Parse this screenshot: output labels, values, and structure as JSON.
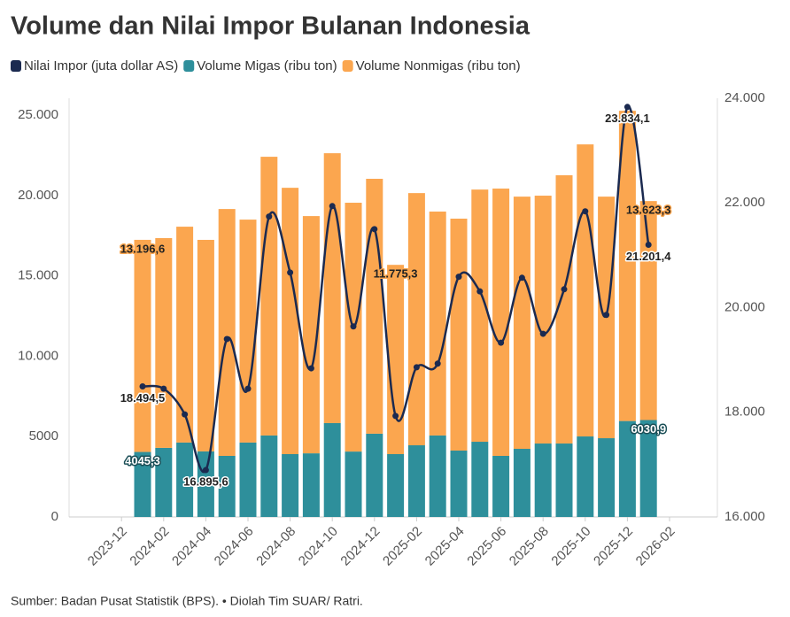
{
  "chart_data": {
    "type": "bar-line",
    "title": "Volume dan Nilai Impor Bulanan Indonesia",
    "source": "Sumber: Badan Pusat Statistik (BPS). • Diolah Tim SUAR/ Ratri.",
    "x": [
      "2024-01",
      "2024-02",
      "2024-03",
      "2024-04",
      "2024-05",
      "2024-06",
      "2024-07",
      "2024-08",
      "2024-09",
      "2024-10",
      "2024-11",
      "2024-12",
      "2025-01",
      "2025-02",
      "2025-03",
      "2025-04",
      "2025-05",
      "2025-06",
      "2025-07",
      "2025-08",
      "2025-09",
      "2025-10",
      "2025-11",
      "2025-12",
      "2026-01"
    ],
    "xticks": [
      "2023-12",
      "2024-02",
      "2024-04",
      "2024-06",
      "2024-08",
      "2024-10",
      "2024-12",
      "2025-02",
      "2025-04",
      "2025-06",
      "2025-08",
      "2025-10",
      "2025-12",
      "2026-02"
    ],
    "ylim": [
      0,
      26050
    ],
    "yticks": [
      0,
      5000,
      {
        "value": 10000,
        "label": "10.000"
      },
      {
        "value": 15000,
        "label": "15.000"
      },
      {
        "value": 20000,
        "label": "20.000"
      },
      {
        "value": 25000,
        "label": "25.000"
      }
    ],
    "y2lim": [
      16000,
      24000
    ],
    "y2ticks": [
      {
        "value": 16000,
        "label": "16.000"
      },
      {
        "value": 18000,
        "label": "18.000"
      },
      {
        "value": 20000,
        "label": "20.000"
      },
      {
        "value": 22000,
        "label": "22.000"
      },
      {
        "value": 24000,
        "label": "24.000"
      }
    ],
    "series": [
      {
        "name": "Nilai Impor (juta dollar AS)",
        "color": "#1b2a50",
        "kind": "line",
        "axis": "y2",
        "values": [
          18494.5,
          18450,
          17960,
          16895.6,
          19400,
          18450,
          21740,
          20670,
          18840,
          21940,
          19640,
          21500,
          17930,
          18860,
          18930,
          20590,
          20310,
          19330,
          20570,
          19500,
          20350,
          21840,
          19860,
          23834.1,
          21201.4
        ],
        "value_labels": [
          "18.494,5",
          null,
          null,
          "16.895,6",
          null,
          null,
          null,
          null,
          null,
          null,
          null,
          null,
          null,
          null,
          null,
          null,
          null,
          null,
          null,
          null,
          null,
          null,
          null,
          "23.834,1",
          "21.201,4"
        ]
      },
      {
        "name": "Volume Migas (ribu ton)",
        "color": "#2e8f9b",
        "kind": "bar",
        "values": [
          4045.3,
          4300,
          4630,
          4080,
          3800,
          4630,
          5070,
          3910,
          3960,
          5840,
          4070,
          5180,
          3910,
          4460,
          5070,
          4130,
          4680,
          3800,
          4240,
          4570,
          4570,
          5010,
          4900,
          5970,
          6030.9
        ],
        "value_labels": [
          "4045,3",
          null,
          null,
          null,
          null,
          null,
          null,
          null,
          null,
          null,
          null,
          null,
          null,
          null,
          null,
          null,
          null,
          null,
          null,
          null,
          null,
          null,
          null,
          null,
          "6030,9"
        ]
      },
      {
        "name": "Volume Nonmigas (ribu ton)",
        "color": "#fba64f",
        "kind": "bar",
        "values": [
          13196.6,
          13050,
          13430,
          13160,
          15360,
          13870,
          17340,
          16570,
          14760,
          16790,
          15480,
          15860,
          11775.3,
          15690,
          13930,
          14430,
          15690,
          16630,
          15690,
          15420,
          16690,
          18170,
          15030,
          19300,
          13623.3
        ],
        "value_labels": [
          "13.196,6",
          null,
          null,
          null,
          null,
          null,
          null,
          null,
          null,
          null,
          null,
          null,
          "11.775,3",
          null,
          null,
          null,
          null,
          null,
          null,
          null,
          null,
          null,
          null,
          null,
          "13.623,3"
        ]
      }
    ]
  }
}
